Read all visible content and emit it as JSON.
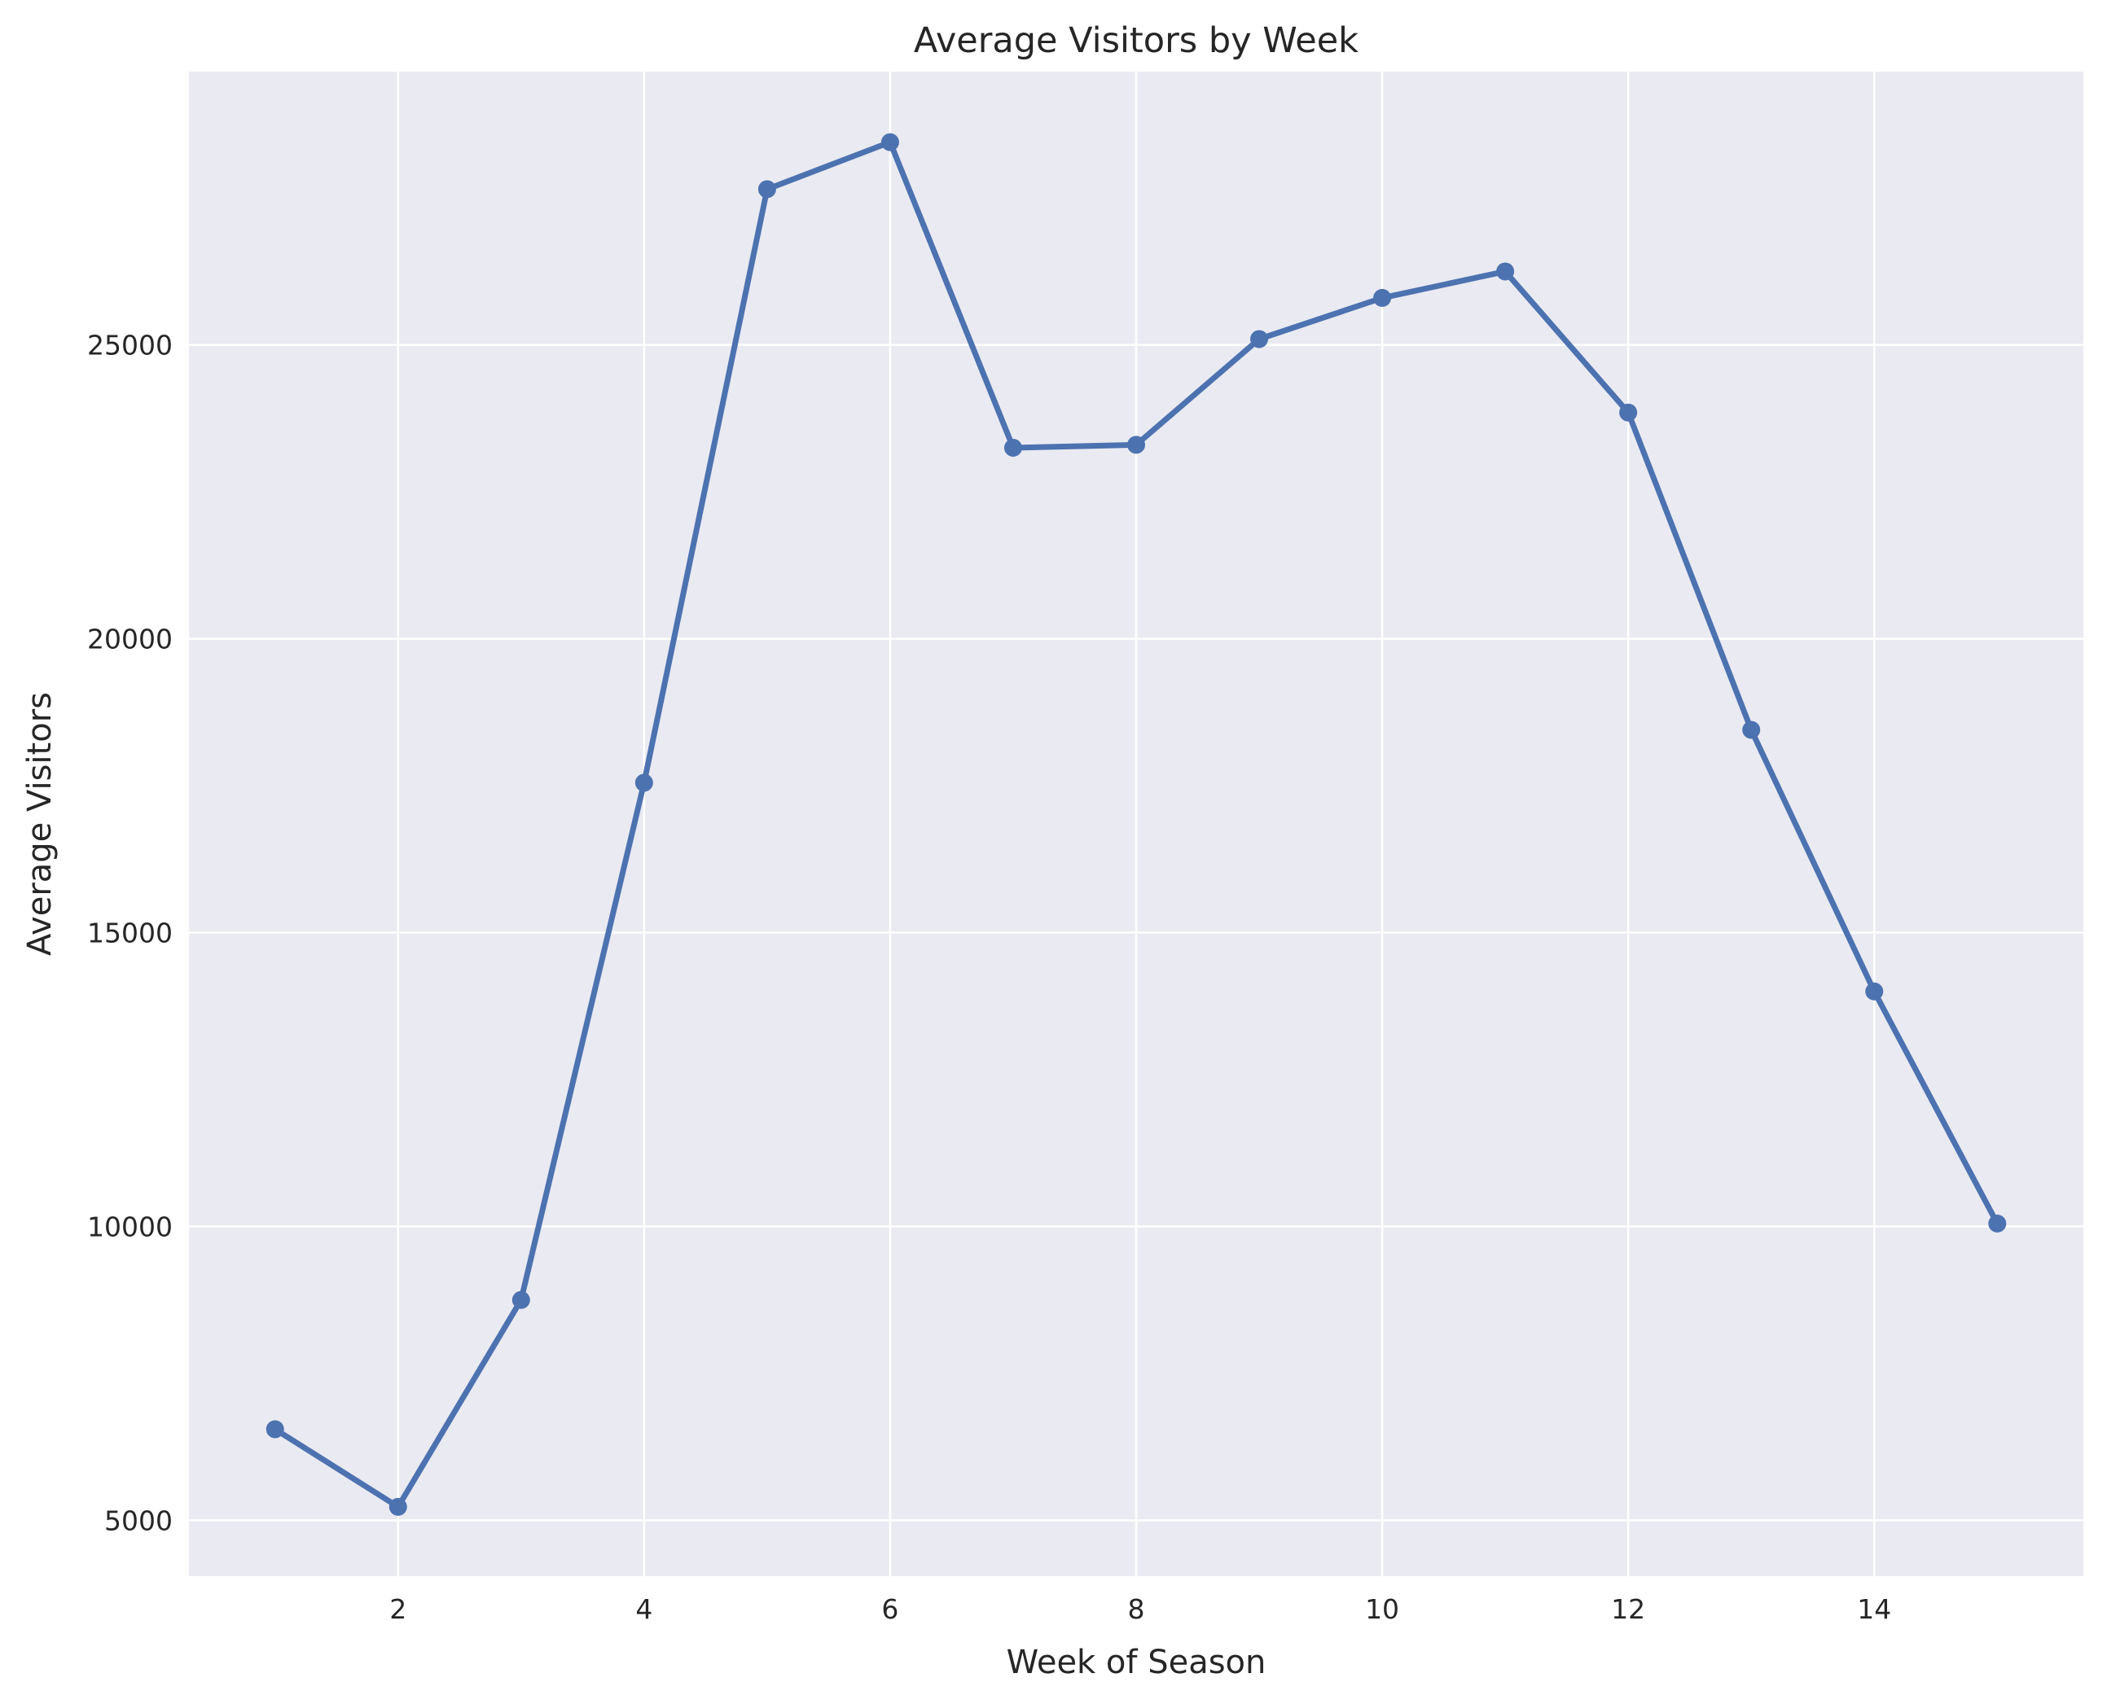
{
  "chart_data": {
    "type": "line",
    "title": "Average Visitors by Week",
    "xlabel": "Week of Season",
    "ylabel": "Average Visitors",
    "x": [
      1,
      2,
      3,
      4,
      5,
      6,
      7,
      8,
      9,
      10,
      11,
      12,
      13,
      14,
      15
    ],
    "series": [
      {
        "values": [
          6550,
          5230,
          8750,
          17550,
          27650,
          28450,
          23250,
          23300,
          25100,
          25800,
          26250,
          23850,
          18450,
          14000,
          10050
        ],
        "color": "#4c72b0",
        "marker": "circle"
      }
    ],
    "xlim": [
      0.3,
      15.7
    ],
    "ylim": [
      4050,
      29650
    ],
    "xticks": [
      2,
      4,
      6,
      8,
      10,
      12,
      14
    ],
    "yticks": [
      5000,
      10000,
      15000,
      20000,
      25000
    ],
    "grid": true,
    "background_color": "#eaeaf2",
    "grid_color": "#ffffff"
  }
}
